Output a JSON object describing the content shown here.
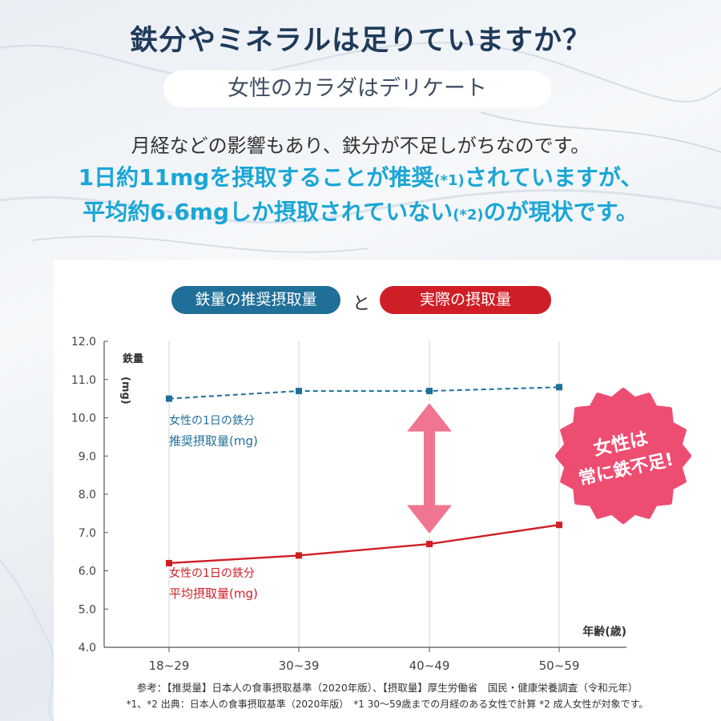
{
  "headline": "鉄分やミネラルは足りていますか？",
  "subheading": "女性のカラダはデリケート",
  "body": {
    "line1": "月経などの影響もあり、鉄分が不足しがちなのです。",
    "line2_a": "1日約11mgを摂取することが推奨",
    "line2_note": "(*1)",
    "line2_b": "されていますが、",
    "line3_a": "平均約6.6mgしか摂取されていない",
    "line3_note": "(*2)",
    "line3_b": "のが現状です。"
  },
  "legend": {
    "recommended": "鉄量の推奨摂取量",
    "and": "と",
    "actual": "実際の摂取量"
  },
  "badge": {
    "line1": "女性は",
    "line2": "常に鉄不足!"
  },
  "colors": {
    "recommended": "#1f6f99",
    "actual": "#d01e26",
    "arrow": "#ef7590",
    "badge": "#ee4d72",
    "accent_text": "#1aa6d6"
  },
  "chart_data": {
    "type": "line",
    "categories": [
      "18~29",
      "30~39",
      "40~49",
      "50~59"
    ],
    "ylim": [
      4.0,
      12.0
    ],
    "yticks": [
      "4.0",
      "5.0",
      "6.0",
      "7.0",
      "8.0",
      "9.0",
      "10.0",
      "11.0",
      "12.0"
    ],
    "ylabel": "鉄量(mg)",
    "xlabel": "年齢(歳)",
    "series": [
      {
        "name": "女性の1日の鉄分 推奨摂取量(mg)",
        "label_line1": "女性の1日の鉄分",
        "label_line2": "推奨摂取量(mg)",
        "values": [
          10.5,
          10.7,
          10.7,
          10.8
        ],
        "style": "dashed",
        "color": "#1f6f99"
      },
      {
        "name": "女性の1日の鉄分 平均摂取量(mg)",
        "label_line1": "女性の1日の鉄分",
        "label_line2": "平均摂取量(mg)",
        "values": [
          6.2,
          6.4,
          6.7,
          7.2
        ],
        "style": "solid",
        "color": "#d01e26"
      }
    ],
    "grid": "vertical"
  },
  "footer": {
    "line1": "参考：【推奨量】日本人の食事摂取基準（2020年版）、【摂取量】厚生労働省　国民・健康栄養調査（令和元年）",
    "line2": "*1、*2 出典：日本人の食事摂取基準（2020年版）　*1 30～59歳までの月経のある女性で計算 *2 成人女性が対象です。"
  }
}
